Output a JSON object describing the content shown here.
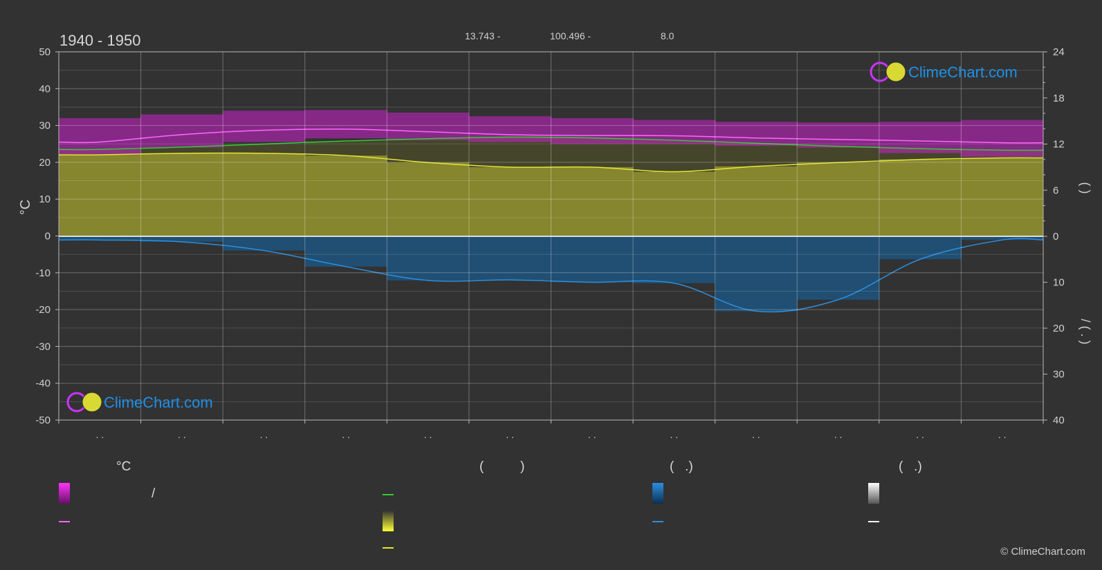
{
  "header": {
    "period": "1940 - 1950",
    "coord_lat": "13.743 -",
    "coord_lon": "100.496 -",
    "elevation": "8.0"
  },
  "brand": {
    "name": "ClimeChart.com",
    "copyright": "© ClimeChart.com"
  },
  "colors": {
    "background": "#323232",
    "temp_band": "#cc22cc",
    "temp_mean_line": "#ff66ff",
    "daylight_line": "#33cc33",
    "sunshine_fill": "#8f8f2f",
    "sunshine_line": "#e6e633",
    "precip_fill": "#1b5a8a",
    "precip_line": "#2c8fe0",
    "brand_blue": "#1e90e8"
  },
  "legend": {
    "col1_heading": "°C",
    "col1_slash": "/",
    "col2_heading": "(          )",
    "col3_heading": "(   .)",
    "col4_heading": "(   .)"
  },
  "chart_data": {
    "type": "area",
    "months": 12,
    "x_tick_labels": [
      ". .",
      ". .",
      ". .",
      ". .",
      ". .",
      ". .",
      ". .",
      ". .",
      ". .",
      ". .",
      ". .",
      ". ."
    ],
    "left_axis": {
      "label": "°C",
      "range": [
        -50,
        50
      ],
      "ticks": [
        "50",
        "40",
        "30",
        "20",
        "10",
        "0",
        "-10",
        "-20",
        "-30",
        "-40",
        "-50"
      ]
    },
    "right_axis_top": {
      "label": "(    )",
      "range": [
        0,
        24
      ],
      "ticks": [
        "24",
        "18",
        "12",
        "6",
        "0"
      ]
    },
    "right_axis_bottom": {
      "label": "/    (  .    )",
      "range": [
        0,
        40
      ],
      "ticks": [
        "10",
        "20",
        "30",
        "40"
      ]
    },
    "grid": true,
    "series": [
      {
        "key": "temp_mean",
        "values": [
          25.5,
          27.5,
          28.7,
          29.0,
          28.3,
          27.5,
          27.3,
          27.2,
          26.6,
          26.2,
          25.8,
          25.3
        ]
      },
      {
        "key": "temp_max",
        "values": [
          32.0,
          33.0,
          34.0,
          34.2,
          33.5,
          32.5,
          32.0,
          31.5,
          31.0,
          30.8,
          31.0,
          31.5
        ]
      },
      {
        "key": "temp_min",
        "values": [
          22.0,
          24.0,
          25.5,
          26.5,
          26.0,
          25.5,
          25.0,
          25.0,
          24.5,
          24.0,
          22.5,
          21.5
        ]
      },
      {
        "key": "daylight_hours",
        "values": [
          11.3,
          11.6,
          12.0,
          12.4,
          12.7,
          12.9,
          12.8,
          12.5,
          12.1,
          11.7,
          11.4,
          11.2
        ]
      },
      {
        "key": "sunshine_hours",
        "values": [
          10.6,
          10.8,
          10.8,
          10.5,
          9.6,
          9.0,
          9.0,
          8.4,
          9.1,
          9.6,
          10.0,
          10.2
        ]
      },
      {
        "key": "precipitation_mm_per_day",
        "values": [
          0.8,
          1.2,
          3.1,
          6.6,
          9.6,
          9.5,
          10.0,
          10.2,
          16.3,
          13.8,
          5.0,
          0.8
        ]
      }
    ]
  }
}
